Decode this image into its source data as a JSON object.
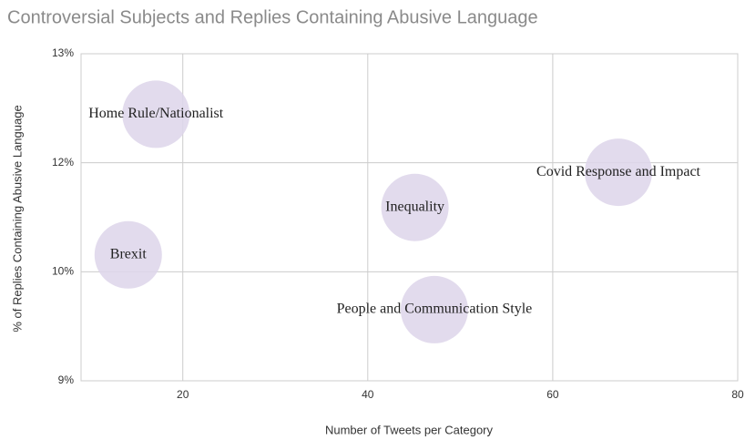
{
  "chart_data": {
    "type": "scatter",
    "title": "Controversial Subjects and Replies Containing Abusive Language",
    "x_label": "Number of Tweets per Category",
    "y_label": "% of Replies Containing Abusive Language",
    "labels": [
      "Home Rule/Nationalist",
      "Brexit",
      "Inequality",
      "People and Communication Style",
      "Covid Response and Impact"
    ],
    "x": [
      17.1,
      14.1,
      45.1,
      47.2,
      67.1
    ],
    "values": [
      12.26,
      10.54,
      11.12,
      9.87,
      11.55
    ],
    "color": "#ddd5ea",
    "xlim": [
      9,
      80
    ],
    "xticks": [
      20,
      40,
      60,
      80
    ],
    "ylim": [
      9,
      13
    ],
    "yticks": [
      {
        "value": 9,
        "label": "9%"
      },
      {
        "value": 10.333,
        "label": "10%"
      },
      {
        "value": 11.667,
        "label": "12%"
      },
      {
        "value": 13,
        "label": "13%"
      }
    ],
    "grid": true
  }
}
